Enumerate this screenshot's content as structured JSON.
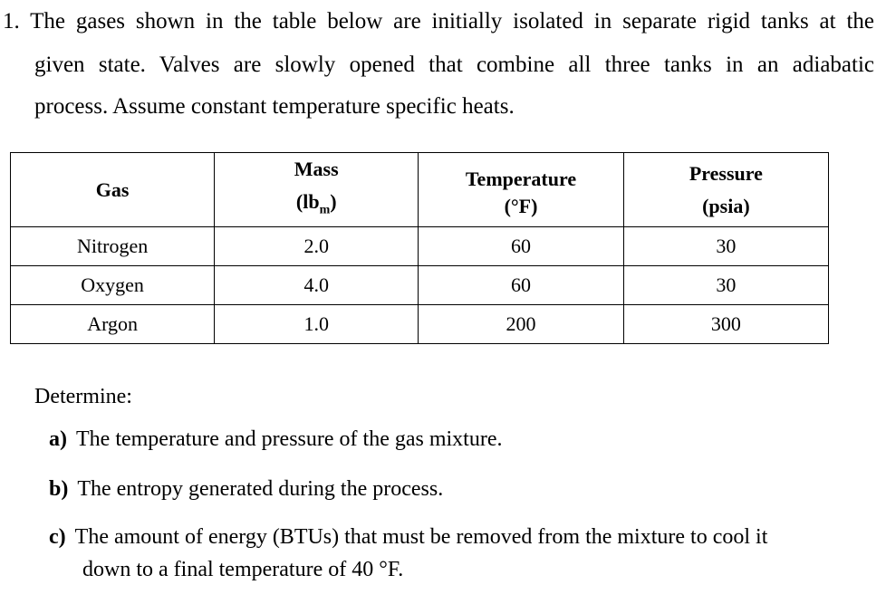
{
  "problem": {
    "line1": "1. The gases shown in the table below are initially isolated in separate rigid tanks at the",
    "line2": "given state.  Valves are slowly opened that combine all three tanks in an adiabatic",
    "line3": "process.  Assume constant temperature specific heats."
  },
  "table": {
    "headers": {
      "gas": "Gas",
      "mass_line1": "Mass",
      "mass_unit": "(lb",
      "mass_sub": "m",
      "mass_close": ")",
      "temp_line1": "Temperature",
      "temp_line2": "(°F)",
      "pres_line1": "Pressure",
      "pres_line2": "(psia)"
    },
    "rows": [
      {
        "gas": "Nitrogen",
        "mass": "2.0",
        "temp": "60",
        "pressure": "30"
      },
      {
        "gas": "Oxygen",
        "mass": "4.0",
        "temp": "60",
        "pressure": "30"
      },
      {
        "gas": "Argon",
        "mass": "1.0",
        "temp": "200",
        "pressure": "300"
      }
    ]
  },
  "determine": {
    "label": "Determine:",
    "a_letter": "a)",
    "a_text": "The temperature and pressure of the gas mixture.",
    "b_letter": "b)",
    "b_text": "The entropy generated during the process.",
    "c_letter": "c)",
    "c_text1": "The amount of energy (BTUs) that must be removed from the mixture to cool it",
    "c_text2": "down to a final temperature of 40 °F."
  }
}
